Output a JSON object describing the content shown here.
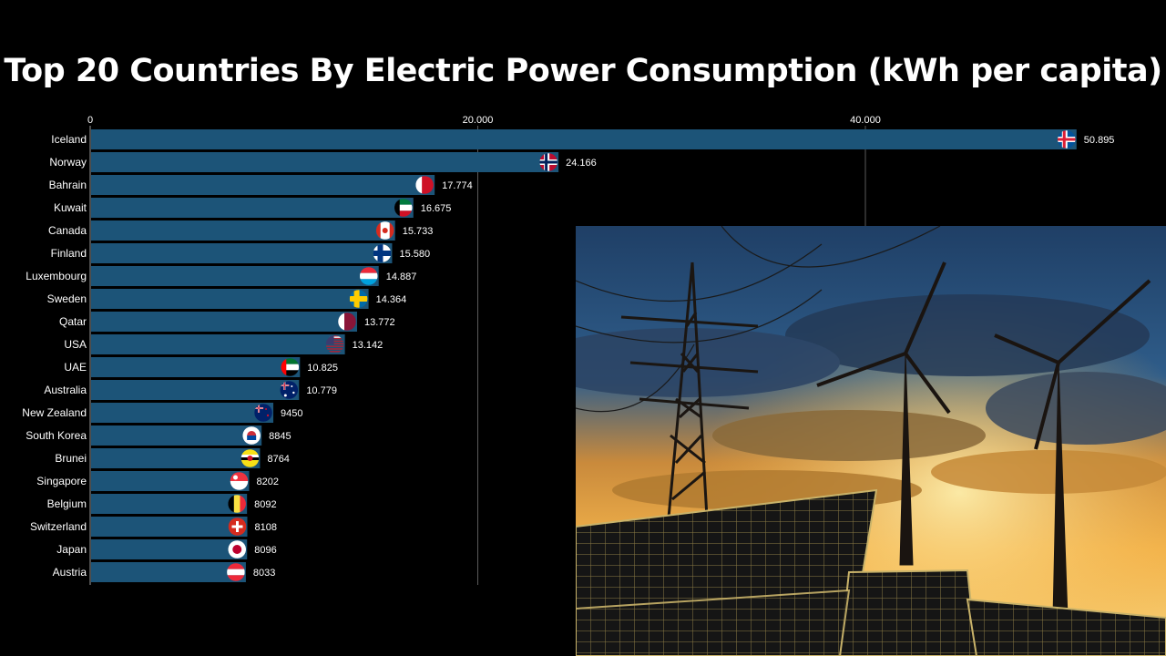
{
  "title": "Top 20 Countries By Electric Power Consumption (kWh per capita)",
  "chart_data": {
    "type": "bar",
    "orientation": "horizontal",
    "title": "Top 20 Countries By Electric Power Consumption (kWh per capita)",
    "xlim": [
      0,
      52000
    ],
    "x_ticks": [
      0,
      20000,
      40000
    ],
    "x_tick_labels": [
      "0",
      "20.000",
      "40.000"
    ],
    "grid": true,
    "bar_color": "#1c5478",
    "categories": [
      "Iceland",
      "Norway",
      "Bahrain",
      "Kuwait",
      "Canada",
      "Finland",
      "Luxembourg",
      "Sweden",
      "Qatar",
      "USA",
      "UAE",
      "Australia",
      "New Zealand",
      "South Korea",
      "Brunei",
      "Singapore",
      "Belgium",
      "Switzerland",
      "Japan",
      "Austria"
    ],
    "values": [
      50895,
      24166,
      17774,
      16675,
      15733,
      15580,
      14887,
      14364,
      13772,
      13142,
      10825,
      10779,
      9450,
      8845,
      8764,
      8202,
      8092,
      8108,
      8096,
      8033
    ],
    "value_labels": [
      "50.895",
      "24.166",
      "17.774",
      "16.675",
      "15.733",
      "15.580",
      "14.887",
      "14.364",
      "13.772",
      "13.142",
      "10.825",
      "10.779",
      "9450",
      "8845",
      "8764",
      "8202",
      "8092",
      "8108",
      "8096",
      "8033"
    ],
    "flag_icons": [
      "iceland-flag-icon",
      "norway-flag-icon",
      "bahrain-flag-icon",
      "kuwait-flag-icon",
      "canada-flag-icon",
      "finland-flag-icon",
      "luxembourg-flag-icon",
      "sweden-flag-icon",
      "qatar-flag-icon",
      "usa-flag-icon",
      "uae-flag-icon",
      "australia-flag-icon",
      "new-zealand-flag-icon",
      "south-korea-flag-icon",
      "brunei-flag-icon",
      "singapore-flag-icon",
      "belgium-flag-icon",
      "switzerland-flag-icon",
      "japan-flag-icon",
      "austria-flag-icon"
    ]
  },
  "image": {
    "subject": "power-line-wind-turbine-solar-panel-photo"
  }
}
